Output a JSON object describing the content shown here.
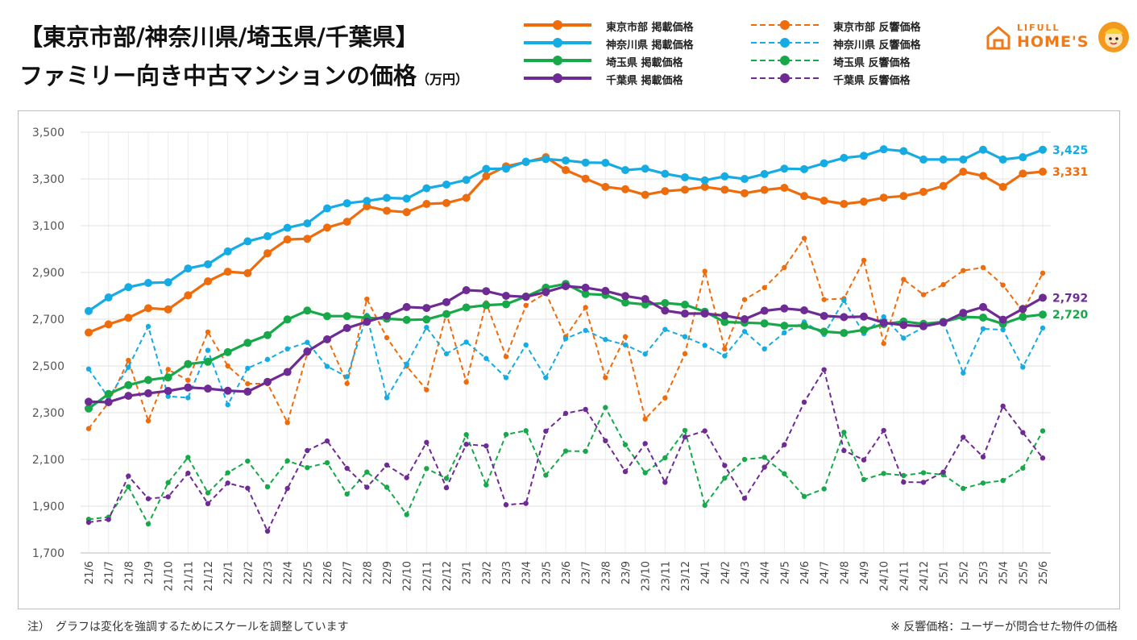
{
  "title": {
    "line1": "【東京市部/神奈川県/埼玉県/千葉県】",
    "line2": "ファミリー向き中古マンションの価格",
    "unit": "（万円）"
  },
  "logo": {
    "line1": "LIFULL",
    "line2": "HOME'S"
  },
  "notes": {
    "left": "注）　グラフは変化を強調するためにスケールを調整しています",
    "right": "※ 反響価格：ユーザーが問合せた物件の価格"
  },
  "colors": {
    "tokyo": "#ef6c0c",
    "kanagawa": "#15ace3",
    "saitama": "#17a84a",
    "chiba": "#6f2b94"
  },
  "chart_data": {
    "type": "line",
    "ylim": [
      1700,
      3500
    ],
    "yticks": [
      1700,
      1900,
      2100,
      2300,
      2500,
      2700,
      2900,
      3100,
      3300,
      3500
    ],
    "ytick_labels": [
      "1,700",
      "1,900",
      "2,100",
      "2,300",
      "2,500",
      "2,700",
      "2,900",
      "3,100",
      "3,300",
      "3,500"
    ],
    "grid": true,
    "categories": [
      "21/6",
      "21/7",
      "21/8",
      "21/9",
      "21/10",
      "21/11",
      "21/12",
      "22/1",
      "22/2",
      "22/3",
      "22/4",
      "22/5",
      "22/6",
      "22/7",
      "22/8",
      "22/9",
      "22/10",
      "22/11",
      "22/12",
      "23/1",
      "23/2",
      "23/3",
      "23/4",
      "23/5",
      "23/6",
      "23/7",
      "23/8",
      "23/9",
      "23/10",
      "23/11",
      "23/12",
      "24/1",
      "24/2",
      "24/3",
      "24/4",
      "24/5",
      "24/6",
      "24/7",
      "24/8",
      "24/9",
      "24/10",
      "24/11",
      "24/12",
      "25/1",
      "25/2",
      "25/3",
      "25/4",
      "25/5",
      "25/6"
    ],
    "series": [
      {
        "name": "東京市部 掲載価格",
        "key": "tokyo",
        "dash": false,
        "end_label": "3,331",
        "values": [
          2643,
          2678,
          2706,
          2747,
          2742,
          2802,
          2862,
          2903,
          2897,
          2982,
          3041,
          3044,
          3092,
          3117,
          3183,
          3164,
          3158,
          3193,
          3197,
          3219,
          3312,
          3354,
          3372,
          3393,
          3338,
          3301,
          3266,
          3256,
          3232,
          3248,
          3254,
          3266,
          3254,
          3239,
          3253,
          3262,
          3227,
          3207,
          3193,
          3203,
          3220,
          3227,
          3245,
          3270,
          3331,
          3313,
          3266,
          3323,
          3331
        ]
      },
      {
        "name": "神奈川県 掲載価格",
        "key": "kanagawa",
        "dash": false,
        "end_label": "3,425",
        "values": [
          2735,
          2793,
          2837,
          2855,
          2858,
          2917,
          2935,
          2990,
          3033,
          3055,
          3091,
          3110,
          3174,
          3196,
          3206,
          3219,
          3216,
          3260,
          3276,
          3296,
          3343,
          3344,
          3374,
          3385,
          3379,
          3370,
          3369,
          3338,
          3344,
          3322,
          3307,
          3294,
          3311,
          3300,
          3321,
          3344,
          3342,
          3367,
          3390,
          3399,
          3427,
          3419,
          3383,
          3383,
          3383,
          3425,
          3383,
          3393,
          3425
        ]
      },
      {
        "name": "埼玉県 掲載価格",
        "key": "saitama",
        "dash": false,
        "end_label": "2,720",
        "values": [
          2318,
          2380,
          2418,
          2440,
          2451,
          2508,
          2518,
          2559,
          2599,
          2632,
          2699,
          2737,
          2713,
          2713,
          2706,
          2702,
          2697,
          2699,
          2722,
          2750,
          2760,
          2764,
          2797,
          2835,
          2851,
          2808,
          2804,
          2771,
          2763,
          2769,
          2762,
          2732,
          2688,
          2685,
          2682,
          2672,
          2672,
          2647,
          2641,
          2654,
          2679,
          2690,
          2680,
          2689,
          2710,
          2707,
          2680,
          2710,
          2720
        ]
      },
      {
        "name": "千葉県 掲載価格",
        "key": "chiba",
        "dash": false,
        "end_label": "2,792",
        "values": [
          2347,
          2345,
          2372,
          2383,
          2393,
          2408,
          2403,
          2394,
          2390,
          2432,
          2474,
          2562,
          2614,
          2662,
          2689,
          2714,
          2752,
          2748,
          2773,
          2824,
          2820,
          2800,
          2796,
          2816,
          2841,
          2835,
          2821,
          2799,
          2786,
          2737,
          2724,
          2724,
          2715,
          2700,
          2736,
          2746,
          2738,
          2714,
          2709,
          2711,
          2685,
          2675,
          2670,
          2686,
          2727,
          2752,
          2698,
          2744,
          2792
        ]
      },
      {
        "name": "東京市部 反響価格",
        "key": "tokyo",
        "dash": true,
        "values": [
          2232,
          2343,
          2524,
          2265,
          2485,
          2439,
          2645,
          2500,
          2424,
          2424,
          2258,
          2554,
          2620,
          2425,
          2786,
          2621,
          2499,
          2398,
          2726,
          2431,
          2770,
          2540,
          2759,
          2812,
          2625,
          2750,
          2450,
          2625,
          2273,
          2363,
          2552,
          2905,
          2573,
          2784,
          2835,
          2921,
          3046,
          2784,
          2788,
          2952,
          2596,
          2870,
          2805,
          2848,
          2908,
          2921,
          2846,
          2733,
          2897
        ]
      },
      {
        "name": "神奈川県 反響価格",
        "key": "kanagawa",
        "dash": true,
        "values": [
          2487,
          2364,
          2494,
          2669,
          2370,
          2364,
          2567,
          2334,
          2490,
          2528,
          2573,
          2601,
          2498,
          2454,
          2716,
          2364,
          2508,
          2665,
          2552,
          2602,
          2532,
          2450,
          2590,
          2450,
          2617,
          2652,
          2613,
          2590,
          2551,
          2656,
          2625,
          2588,
          2543,
          2647,
          2573,
          2642,
          2688,
          2635,
          2780,
          2639,
          2710,
          2619,
          2665,
          2689,
          2470,
          2659,
          2655,
          2495,
          2662
        ]
      },
      {
        "name": "埼玉県 反響価格",
        "key": "saitama",
        "dash": true,
        "values": [
          1844,
          1853,
          1983,
          1824,
          2001,
          2109,
          1957,
          2043,
          2093,
          1983,
          2094,
          2065,
          2086,
          1952,
          2046,
          1981,
          1864,
          2061,
          2019,
          2206,
          1991,
          2207,
          2223,
          2033,
          2136,
          2135,
          2322,
          2163,
          2043,
          2107,
          2224,
          1904,
          2020,
          2100,
          2109,
          2039,
          1942,
          1974,
          2216,
          2014,
          2040,
          2031,
          2043,
          2034,
          1976,
          1999,
          2010,
          2063,
          2222
        ]
      },
      {
        "name": "千葉県 反響価格",
        "key": "chiba",
        "dash": true,
        "values": [
          1831,
          1843,
          2029,
          1932,
          1940,
          2041,
          1911,
          1999,
          1977,
          1793,
          1976,
          2138,
          2179,
          2062,
          1981,
          2076,
          2022,
          2173,
          1979,
          2165,
          2158,
          1906,
          1912,
          2221,
          2297,
          2314,
          2180,
          2048,
          2168,
          2002,
          2196,
          2222,
          2074,
          1934,
          2067,
          2163,
          2345,
          2484,
          2138,
          2098,
          2224,
          2003,
          2002,
          2046,
          2195,
          2111,
          2328,
          2215,
          2106
        ]
      }
    ]
  }
}
